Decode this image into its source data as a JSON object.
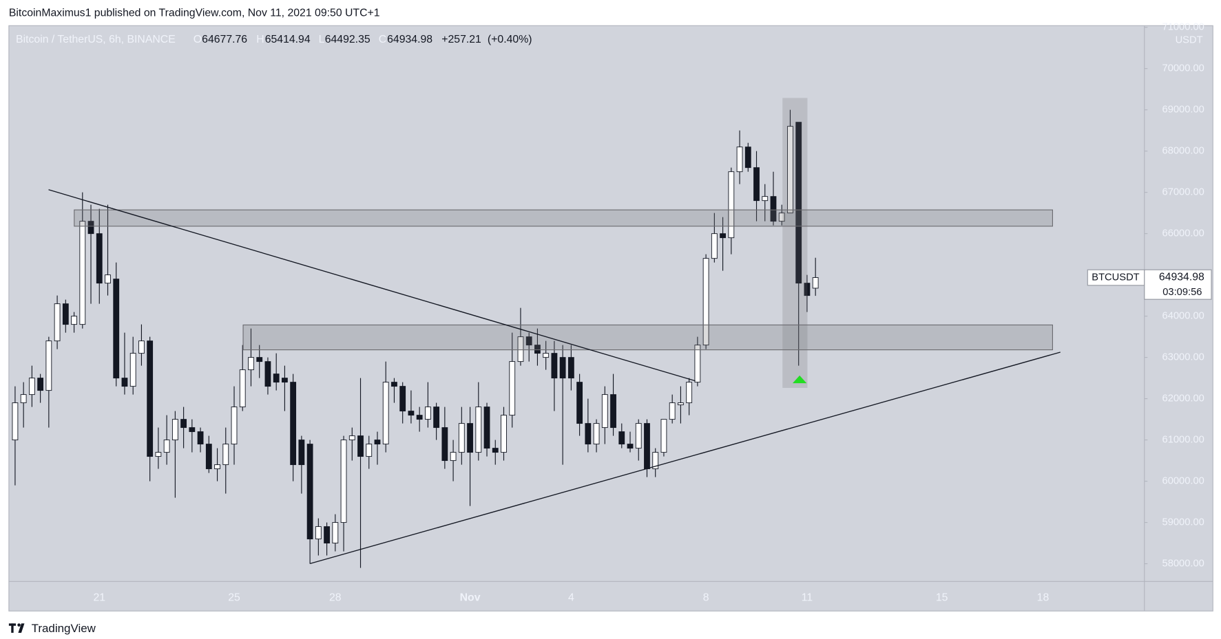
{
  "header": {
    "publisher": "BitcoinMaximus1 published on TradingView.com, Nov 11, 2021 09:50 UTC+1"
  },
  "chart_data": {
    "type": "candlestick",
    "title": "Bitcoin / TetherUS, 6h, BINANCE",
    "legend": {
      "o": "O",
      "open": 64677.76,
      "h": "H",
      "high": 65414.94,
      "l": "L",
      "low": 64492.35,
      "c": "C",
      "close": 64934.98,
      "change": "+257.21",
      "change_pct": "(+0.40%)"
    },
    "categories": [
      null,
      null,
      null,
      null,
      null,
      null,
      null,
      null,
      null,
      null,
      "21",
      null,
      null,
      null,
      null,
      null,
      null,
      null,
      null,
      null,
      null,
      null,
      null,
      null,
      null,
      null,
      "25",
      null,
      null,
      null,
      null,
      null,
      null,
      null,
      null,
      null,
      null,
      null,
      "28",
      null,
      null,
      null,
      null,
      null,
      null,
      null,
      null,
      null,
      null,
      null,
      null,
      null,
      null,
      null,
      "Nov",
      null,
      null,
      null,
      null,
      null,
      null,
      null,
      null,
      null,
      null,
      null,
      "4",
      null,
      null,
      null,
      null,
      null,
      null,
      null,
      null,
      null,
      null,
      null,
      null,
      null,
      null,
      null,
      "8",
      null,
      null,
      null,
      null,
      null,
      null,
      null,
      null,
      null,
      null,
      null,
      "11",
      null,
      null,
      null,
      null,
      null,
      null,
      null,
      null,
      null,
      null,
      null,
      null,
      null,
      null,
      null,
      "15",
      null,
      null,
      null,
      null,
      null,
      null,
      null,
      null,
      null,
      null,
      null,
      "18",
      null,
      null,
      null,
      null,
      null,
      null,
      null,
      null,
      null,
      null,
      null,
      null
    ],
    "open": [
      61000,
      61900,
      62100,
      62500,
      62200,
      63400,
      64300,
      63800,
      63800,
      66300,
      66000,
      64800,
      64900,
      62500,
      62300,
      63100,
      63400,
      60600,
      60700,
      61000,
      61500,
      61300,
      61200,
      60900,
      60300,
      60400,
      60900,
      61800,
      62700,
      63000,
      62900,
      62600,
      62500,
      62400,
      61000,
      60900,
      58600,
      58900,
      58500,
      59000,
      61000,
      61100,
      60600,
      61000,
      60900,
      62400,
      62300,
      61700,
      61600,
      61500,
      61800,
      61300,
      60500,
      60700,
      61400,
      60700,
      61800,
      60800,
      60700,
      61600,
      62900,
      63500,
      63300,
      63000,
      63100,
      63000,
      63000,
      62400,
      61400,
      60900,
      61300,
      62100,
      61200,
      60900,
      60800,
      61400,
      60300,
      60700,
      61500,
      61850,
      61900,
      62400,
      63300,
      65400,
      66000,
      65900,
      67500,
      68100,
      67600,
      66800,
      66900,
      66300,
      66500,
      68700,
      64800,
      64677.76,
      null,
      null,
      null,
      null,
      null,
      null,
      null,
      null,
      null,
      null,
      null,
      null,
      null,
      null,
      null,
      null,
      null,
      null,
      null,
      null,
      null,
      null,
      null,
      null,
      null,
      null,
      null,
      null,
      null,
      null,
      null,
      null,
      null,
      null,
      null,
      null,
      null,
      null,
      null
    ],
    "high": [
      62300,
      62400,
      62800,
      62600,
      63500,
      64500,
      64400,
      64100,
      67000,
      66700,
      66600,
      66700,
      65300,
      63600,
      63500,
      63800,
      63500,
      61300,
      61600,
      61700,
      61800,
      61500,
      61300,
      61100,
      60800,
      61300,
      62300,
      63300,
      63700,
      63300,
      63000,
      63100,
      62800,
      62600,
      61100,
      61000,
      59100,
      59000,
      59200,
      61100,
      61300,
      62500,
      61100,
      61200,
      62900,
      62500,
      62400,
      62200,
      61800,
      62400,
      61900,
      61800,
      61000,
      61800,
      61800,
      62400,
      61900,
      61000,
      61800,
      63600,
      64200,
      63600,
      63700,
      63400,
      63400,
      63300,
      63300,
      62600,
      62000,
      61500,
      62300,
      62600,
      61400,
      61200,
      61500,
      61500,
      60800,
      61500,
      62100,
      62300,
      62500,
      63500,
      65500,
      66500,
      66400,
      67600,
      68500,
      68200,
      68000,
      67200,
      67500,
      66700,
      69000,
      68700,
      65000,
      65414.94,
      null,
      null,
      null,
      null,
      null,
      null,
      null,
      null,
      null,
      null,
      null,
      null,
      null,
      null,
      null,
      null,
      null,
      null,
      null,
      null,
      null,
      null,
      null,
      null,
      null,
      null,
      null,
      null,
      null,
      null,
      null,
      null,
      null,
      null,
      null,
      null,
      null,
      null,
      null
    ],
    "low": [
      59900,
      61300,
      61800,
      61900,
      61300,
      63200,
      63600,
      63600,
      63700,
      64300,
      64300,
      64500,
      62300,
      62100,
      62100,
      62800,
      60000,
      60300,
      60400,
      59600,
      60800,
      60700,
      60700,
      60200,
      60000,
      59700,
      60400,
      61700,
      62300,
      62500,
      62100,
      62200,
      61700,
      60000,
      59700,
      58000,
      58200,
      58200,
      58300,
      58300,
      60500,
      57900,
      60300,
      60400,
      60700,
      61900,
      61400,
      61400,
      61200,
      61300,
      61000,
      60300,
      60000,
      60400,
      59400,
      60500,
      60600,
      60400,
      60500,
      61300,
      62800,
      62900,
      62800,
      62700,
      61700,
      60400,
      62200,
      61100,
      60700,
      60700,
      60900,
      61100,
      60800,
      60700,
      60500,
      60100,
      60100,
      60600,
      61400,
      61400,
      61600,
      62300,
      63200,
      65300,
      65100,
      65500,
      67200,
      67500,
      66300,
      66300,
      66200,
      66200,
      66500,
      62800,
      64100,
      64492.35,
      null,
      null,
      null,
      null,
      null,
      null,
      null,
      null,
      null,
      null,
      null,
      null,
      null,
      null,
      null,
      null,
      null,
      null,
      null,
      null,
      null,
      null,
      null,
      null,
      null,
      null,
      null,
      null,
      null,
      null,
      null,
      null,
      null,
      null,
      null,
      null,
      null,
      null,
      null
    ],
    "close": [
      61900,
      62100,
      62500,
      62200,
      63400,
      64300,
      63800,
      64000,
      66300,
      66000,
      64800,
      65000,
      62500,
      62300,
      63100,
      63400,
      60600,
      60700,
      61000,
      61500,
      61300,
      61200,
      60900,
      60300,
      60400,
      60900,
      61800,
      62700,
      63000,
      62900,
      62300,
      62400,
      62400,
      60400,
      60400,
      58600,
      58900,
      58500,
      59000,
      61000,
      61100,
      60600,
      60900,
      60900,
      62400,
      62300,
      61700,
      61600,
      61500,
      61800,
      61300,
      60500,
      60700,
      61400,
      60700,
      61800,
      60800,
      60700,
      61600,
      62900,
      63500,
      63300,
      63100,
      63100,
      62500,
      62500,
      62500,
      61400,
      60900,
      61400,
      62100,
      61300,
      60900,
      60800,
      61400,
      60300,
      60700,
      61500,
      61900,
      61900,
      62400,
      63300,
      65400,
      66000,
      65900,
      67500,
      68100,
      67600,
      66800,
      66900,
      66300,
      66500,
      68600,
      64800,
      64500,
      64934.98,
      null,
      null,
      null,
      null,
      null,
      null,
      null,
      null,
      null,
      null,
      null,
      null,
      null,
      null,
      null,
      null,
      null,
      null,
      null,
      null,
      null,
      null,
      null,
      null,
      null,
      null,
      null,
      null,
      null,
      null,
      null,
      null,
      null,
      null,
      null,
      null,
      null,
      null,
      null
    ],
    "up_color": "#ffffff",
    "down_color": "#131722",
    "ylim": [
      57570,
      71040
    ],
    "yticks": [
      {
        "value": 58000,
        "label": "58000.00"
      },
      {
        "value": 59000,
        "label": "59000.00"
      },
      {
        "value": 60000,
        "label": "60000.00"
      },
      {
        "value": 61000,
        "label": "61000.00"
      },
      {
        "value": 62000,
        "label": "62000.00"
      },
      {
        "value": 63000,
        "label": "63000.00"
      },
      {
        "value": 64000,
        "label": "64000.00"
      },
      {
        "value": 65000,
        "label": "65000.00"
      },
      {
        "value": 66000,
        "label": "66000.00"
      },
      {
        "value": 67000,
        "label": "67000.00"
      },
      {
        "value": 68000,
        "label": "68000.00"
      },
      {
        "value": 69000,
        "label": "69000.00"
      },
      {
        "value": 70000,
        "label": "70000.00"
      },
      {
        "value": 71000,
        "label": "71000.00"
      }
    ],
    "y_unit": "USDT",
    "grid": false,
    "price_tag": {
      "symbol": "BTCUSDT",
      "price": 64934.98,
      "countdown": "03:09:56"
    }
  },
  "footer": {
    "brand": "TradingView"
  }
}
